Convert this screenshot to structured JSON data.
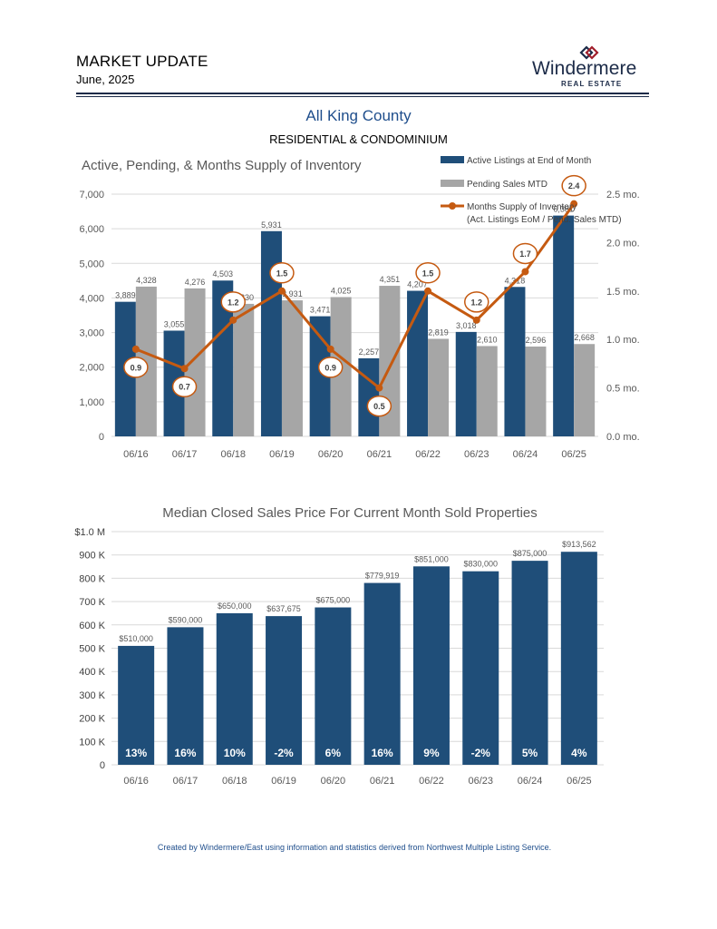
{
  "header": {
    "title": "MARKET UPDATE",
    "date": "June, 2025",
    "logo_name": "Windermere",
    "logo_sub": "REAL ESTATE",
    "logo_icon": "windermere-w-mark"
  },
  "region": {
    "title": "All King County",
    "subtitle": "RESIDENTIAL & CONDOMINIUM"
  },
  "colors": {
    "navy": "#1f4e79",
    "gray": "#a6a6a6",
    "orange": "#c55a11",
    "grid": "#d9d9d9"
  },
  "chart_data": [
    {
      "type": "bar",
      "title": "Active, Pending, & Months Supply of Inventory",
      "categories": [
        "06/16",
        "06/17",
        "06/18",
        "06/19",
        "06/20",
        "06/21",
        "06/22",
        "06/23",
        "06/24",
        "06/25"
      ],
      "series": [
        {
          "name": "Active Listings at End of Month",
          "type": "bar",
          "values": [
            3889,
            3055,
            4503,
            5931,
            3471,
            2257,
            4207,
            3018,
            4318,
            6381
          ],
          "labels": [
            "3,889",
            "3,055",
            "4,503",
            "5,931",
            "3,471",
            "2,257",
            "4,207",
            "3,018",
            "4,318",
            "6,381"
          ]
        },
        {
          "name": "Pending Sales MTD",
          "type": "bar",
          "values": [
            4328,
            4276,
            3830,
            3931,
            4025,
            4351,
            2819,
            2610,
            2596,
            2668
          ],
          "labels": [
            "4,328",
            "4,276",
            "3,830",
            "3,931",
            "4,025",
            "4,351",
            "2,819",
            "2,610",
            "2,596",
            "2,668"
          ]
        },
        {
          "name": "Months Supply of Inventory",
          "name_line2": "(Act. Listings EoM / Pend. Sales MTD)",
          "type": "line",
          "axis": "right",
          "values": [
            0.9,
            0.7,
            1.2,
            1.5,
            0.9,
            0.5,
            1.5,
            1.2,
            1.7,
            2.4
          ],
          "labels": [
            "0.9",
            "0.7",
            "1.2",
            "1.5",
            "0.9",
            "0.5",
            "1.5",
            "1.2",
            "1.7",
            "2.4"
          ]
        }
      ],
      "ylim": [
        0,
        7000
      ],
      "yticks": [
        "0",
        "1,000",
        "2,000",
        "3,000",
        "4,000",
        "5,000",
        "6,000",
        "7,000"
      ],
      "y2lim": [
        0,
        2.5
      ],
      "y2ticks": [
        "0.0 mo.",
        "0.5 mo.",
        "1.0 mo.",
        "1.5 mo.",
        "2.0 mo.",
        "2.5 mo."
      ],
      "grid": true,
      "legend_position": "top-right"
    },
    {
      "type": "bar",
      "title": "Median Closed Sales Price For Current Month Sold Properties",
      "categories": [
        "06/16",
        "06/17",
        "06/18",
        "06/19",
        "06/20",
        "06/21",
        "06/22",
        "06/23",
        "06/24",
        "06/25"
      ],
      "values": [
        510000,
        590000,
        650000,
        637675,
        675000,
        779919,
        851000,
        830000,
        875000,
        913562
      ],
      "value_labels": [
        "$510,000",
        "$590,000",
        "$650,000",
        "$637,675",
        "$675,000",
        "$779,919",
        "$851,000",
        "$830,000",
        "$875,000",
        "$913,562"
      ],
      "change_labels": [
        "13%",
        "16%",
        "10%",
        "-2%",
        "6%",
        "16%",
        "9%",
        "-2%",
        "5%",
        "4%"
      ],
      "ylim": [
        0,
        1000000
      ],
      "yticks": [
        "0",
        "100 K",
        "200 K",
        "300 K",
        "400 K",
        "500 K",
        "600 K",
        "700 K",
        "800 K",
        "900 K",
        "$1.0 M"
      ],
      "grid": true
    }
  ],
  "footer": {
    "text": "Created by Windermere/East using information and statistics derived from Northwest Multiple Listing Service."
  }
}
